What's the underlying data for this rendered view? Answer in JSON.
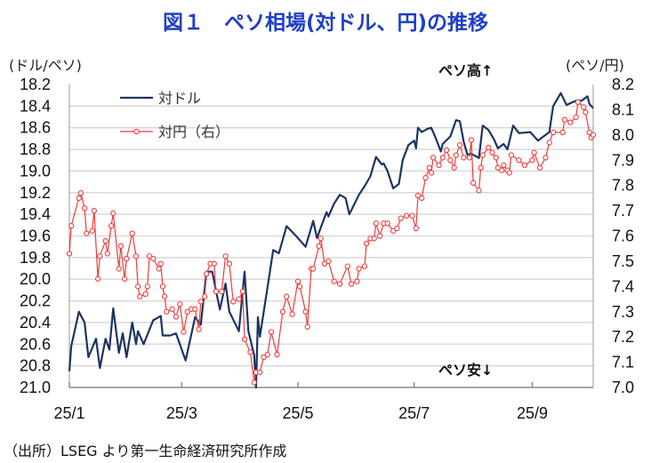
{
  "title": "図１　ペソ相場(対ドル、円)の推移",
  "source": "（出所）LSEG より第一生命経済研究所作成",
  "chart_data": {
    "type": "line",
    "title": "図１　ペソ相場(対ドル、円)の推移",
    "left_unit": "(ドル/ペソ)",
    "right_unit": "(ペソ/円)",
    "annotation_up": "ペソ高↑",
    "annotation_down": "ペソ安↓",
    "x_range": [
      "2025-01-01",
      "2025-10-03"
    ],
    "x_ticks": [
      {
        "date": "2025-01-01",
        "label": "25/1"
      },
      {
        "date": "2025-03-01",
        "label": "25/3"
      },
      {
        "date": "2025-05-01",
        "label": "25/5"
      },
      {
        "date": "2025-07-01",
        "label": "25/7"
      },
      {
        "date": "2025-09-01",
        "label": "25/9"
      }
    ],
    "y_left": {
      "range": [
        18.2,
        21.0
      ],
      "inverted": true,
      "ticks": [
        "18.2",
        "18.4",
        "18.6",
        "18.8",
        "19.0",
        "19.2",
        "19.4",
        "19.6",
        "19.8",
        "20.0",
        "20.2",
        "20.4",
        "20.6",
        "20.8",
        "21.0"
      ]
    },
    "y_right": {
      "range": [
        7.0,
        8.2
      ],
      "ticks": [
        "8.2",
        "8.1",
        "8.0",
        "7.9",
        "7.8",
        "7.7",
        "7.6",
        "7.5",
        "7.4",
        "7.3",
        "7.2",
        "7.1",
        "7.0"
      ]
    },
    "grid": "horizontal",
    "legend": "top-left",
    "series": [
      {
        "name": "対ドル",
        "axis": "left",
        "color": "#1c3461",
        "marker": "none",
        "points": [
          [
            "2025-01-01",
            20.85
          ],
          [
            "2025-01-02",
            20.62
          ],
          [
            "2025-01-06",
            20.3
          ],
          [
            "2025-01-09",
            20.4
          ],
          [
            "2025-01-11",
            20.72
          ],
          [
            "2025-01-15",
            20.55
          ],
          [
            "2025-01-17",
            20.82
          ],
          [
            "2025-01-20",
            20.55
          ],
          [
            "2025-01-22",
            20.65
          ],
          [
            "2025-01-24",
            20.27
          ],
          [
            "2025-01-27",
            20.68
          ],
          [
            "2025-01-29",
            20.5
          ],
          [
            "2025-01-31",
            20.72
          ],
          [
            "2025-02-03",
            20.4
          ],
          [
            "2025-02-05",
            20.6
          ],
          [
            "2025-02-06",
            20.48
          ],
          [
            "2025-02-09",
            20.6
          ],
          [
            "2025-02-14",
            20.38
          ],
          [
            "2025-02-18",
            20.34
          ],
          [
            "2025-02-19",
            20.52
          ],
          [
            "2025-02-23",
            20.52
          ],
          [
            "2025-02-26",
            20.5
          ],
          [
            "2025-03-03",
            20.75
          ],
          [
            "2025-03-08",
            20.35
          ],
          [
            "2025-03-11",
            20.42
          ],
          [
            "2025-03-14",
            19.93
          ],
          [
            "2025-03-17",
            19.93
          ],
          [
            "2025-03-21",
            20.28
          ],
          [
            "2025-03-24",
            20.04
          ],
          [
            "2025-03-26",
            20.3
          ],
          [
            "2025-03-31",
            20.48
          ],
          [
            "2025-04-03",
            19.93
          ],
          [
            "2025-04-05",
            20.48
          ],
          [
            "2025-04-08",
            20.7
          ],
          [
            "2025-04-09",
            21.0
          ],
          [
            "2025-04-10",
            20.35
          ],
          [
            "2025-04-11",
            20.53
          ],
          [
            "2025-04-15",
            20.08
          ],
          [
            "2025-04-18",
            19.73
          ],
          [
            "2025-04-21",
            19.76
          ],
          [
            "2025-04-25",
            19.51
          ],
          [
            "2025-04-30",
            19.6
          ],
          [
            "2025-05-05",
            19.7
          ],
          [
            "2025-05-09",
            19.46
          ],
          [
            "2025-05-11",
            19.62
          ],
          [
            "2025-05-16",
            19.38
          ],
          [
            "2025-05-17",
            19.42
          ],
          [
            "2025-05-20",
            19.3
          ],
          [
            "2025-05-23",
            19.22
          ],
          [
            "2025-05-26",
            19.25
          ],
          [
            "2025-05-28",
            19.4
          ],
          [
            "2025-06-02",
            19.22
          ],
          [
            "2025-06-05",
            19.14
          ],
          [
            "2025-06-08",
            19.05
          ],
          [
            "2025-06-11",
            18.87
          ],
          [
            "2025-06-14",
            18.94
          ],
          [
            "2025-06-15",
            18.93
          ],
          [
            "2025-06-17",
            19.0
          ],
          [
            "2025-06-20",
            19.16
          ],
          [
            "2025-06-23",
            19.12
          ],
          [
            "2025-06-25",
            18.9
          ],
          [
            "2025-06-28",
            18.76
          ],
          [
            "2025-07-01",
            18.72
          ],
          [
            "2025-07-02",
            18.79
          ],
          [
            "2025-07-03",
            18.6
          ],
          [
            "2025-07-05",
            18.64
          ],
          [
            "2025-07-08",
            18.61
          ],
          [
            "2025-07-10",
            18.6
          ],
          [
            "2025-07-12",
            18.68
          ],
          [
            "2025-07-15",
            18.82
          ],
          [
            "2025-07-16",
            18.75
          ],
          [
            "2025-07-20",
            18.68
          ],
          [
            "2025-07-23",
            18.53
          ],
          [
            "2025-07-25",
            18.54
          ],
          [
            "2025-07-27",
            18.73
          ],
          [
            "2025-07-29",
            18.85
          ],
          [
            "2025-07-31",
            18.84
          ],
          [
            "2025-08-04",
            18.88
          ],
          [
            "2025-08-06",
            18.58
          ],
          [
            "2025-08-09",
            18.62
          ],
          [
            "2025-08-12",
            18.71
          ],
          [
            "2025-08-14",
            18.79
          ],
          [
            "2025-08-17",
            18.75
          ],
          [
            "2025-08-19",
            18.8
          ],
          [
            "2025-08-22",
            18.58
          ],
          [
            "2025-08-25",
            18.65
          ],
          [
            "2025-08-31",
            18.64
          ],
          [
            "2025-09-04",
            18.72
          ],
          [
            "2025-09-10",
            18.64
          ],
          [
            "2025-09-12",
            18.4
          ],
          [
            "2025-09-16",
            18.28
          ],
          [
            "2025-09-19",
            18.39
          ],
          [
            "2025-09-24",
            18.35
          ],
          [
            "2025-09-27",
            18.35
          ],
          [
            "2025-09-30",
            18.31
          ],
          [
            "2025-10-01",
            18.38
          ],
          [
            "2025-10-03",
            18.42
          ]
        ]
      },
      {
        "name": "対円（右）",
        "axis": "right",
        "color": "#ee3b3b",
        "marker": "circle",
        "points": [
          [
            "2025-01-01",
            7.53
          ],
          [
            "2025-01-02",
            7.64
          ],
          [
            "2025-01-06",
            7.75
          ],
          [
            "2025-01-07",
            7.77
          ],
          [
            "2025-01-09",
            7.71
          ],
          [
            "2025-01-10",
            7.61
          ],
          [
            "2025-01-13",
            7.62
          ],
          [
            "2025-01-14",
            7.7
          ],
          [
            "2025-01-16",
            7.43
          ],
          [
            "2025-01-17",
            7.52
          ],
          [
            "2025-01-20",
            7.58
          ],
          [
            "2025-01-21",
            7.53
          ],
          [
            "2025-01-23",
            7.64
          ],
          [
            "2025-01-24",
            7.69
          ],
          [
            "2025-01-27",
            7.47
          ],
          [
            "2025-01-28",
            7.56
          ],
          [
            "2025-01-30",
            7.43
          ],
          [
            "2025-01-31",
            7.51
          ],
          [
            "2025-02-03",
            7.61
          ],
          [
            "2025-02-05",
            7.52
          ],
          [
            "2025-02-06",
            7.4
          ],
          [
            "2025-02-07",
            7.36
          ],
          [
            "2025-02-10",
            7.37
          ],
          [
            "2025-02-11",
            7.4
          ],
          [
            "2025-02-12",
            7.52
          ],
          [
            "2025-02-14",
            7.51
          ],
          [
            "2025-02-17",
            7.47
          ],
          [
            "2025-02-18",
            7.49
          ],
          [
            "2025-02-19",
            7.4
          ],
          [
            "2025-02-20",
            7.36
          ],
          [
            "2025-02-21",
            7.3
          ],
          [
            "2025-02-24",
            7.31
          ],
          [
            "2025-02-26",
            7.28
          ],
          [
            "2025-02-28",
            7.33
          ],
          [
            "2025-03-02",
            7.22
          ],
          [
            "2025-03-04",
            7.3
          ],
          [
            "2025-03-06",
            7.31
          ],
          [
            "2025-03-08",
            7.31
          ],
          [
            "2025-03-10",
            7.23
          ],
          [
            "2025-03-11",
            7.34
          ],
          [
            "2025-03-13",
            7.36
          ],
          [
            "2025-03-14",
            7.45
          ],
          [
            "2025-03-16",
            7.49
          ],
          [
            "2025-03-18",
            7.49
          ],
          [
            "2025-03-19",
            7.38
          ],
          [
            "2025-03-22",
            7.38
          ],
          [
            "2025-03-24",
            7.52
          ],
          [
            "2025-03-26",
            7.49
          ],
          [
            "2025-03-28",
            7.34
          ],
          [
            "2025-03-31",
            7.35
          ],
          [
            "2025-04-02",
            7.38
          ],
          [
            "2025-04-03",
            7.19
          ],
          [
            "2025-04-06",
            7.14
          ],
          [
            "2025-04-08",
            7.02
          ],
          [
            "2025-04-09",
            7.06
          ],
          [
            "2025-04-11",
            7.06
          ],
          [
            "2025-04-13",
            7.12
          ],
          [
            "2025-04-15",
            7.13
          ],
          [
            "2025-04-17",
            7.22
          ],
          [
            "2025-04-20",
            7.13
          ],
          [
            "2025-04-23",
            7.3
          ],
          [
            "2025-04-25",
            7.36
          ],
          [
            "2025-04-28",
            7.29
          ],
          [
            "2025-05-01",
            7.42
          ],
          [
            "2025-05-02",
            7.4
          ],
          [
            "2025-05-05",
            7.3
          ],
          [
            "2025-05-06",
            7.24
          ],
          [
            "2025-05-08",
            7.47
          ],
          [
            "2025-05-09",
            7.47
          ],
          [
            "2025-05-12",
            7.56
          ],
          [
            "2025-05-13",
            7.59
          ],
          [
            "2025-05-15",
            7.49
          ],
          [
            "2025-05-17",
            7.5
          ],
          [
            "2025-05-20",
            7.42
          ],
          [
            "2025-05-23",
            7.41
          ],
          [
            "2025-05-27",
            7.48
          ],
          [
            "2025-05-29",
            7.41
          ],
          [
            "2025-06-01",
            7.42
          ],
          [
            "2025-06-02",
            7.47
          ],
          [
            "2025-06-05",
            7.48
          ],
          [
            "2025-06-06",
            7.57
          ],
          [
            "2025-06-08",
            7.59
          ],
          [
            "2025-06-10",
            7.59
          ],
          [
            "2025-06-11",
            7.65
          ],
          [
            "2025-06-13",
            7.6
          ],
          [
            "2025-06-15",
            7.65
          ],
          [
            "2025-06-17",
            7.65
          ],
          [
            "2025-06-20",
            7.62
          ],
          [
            "2025-06-22",
            7.63
          ],
          [
            "2025-06-24",
            7.67
          ],
          [
            "2025-06-27",
            7.68
          ],
          [
            "2025-06-30",
            7.68
          ],
          [
            "2025-07-02",
            7.63
          ],
          [
            "2025-07-03",
            7.76
          ],
          [
            "2025-07-05",
            7.75
          ],
          [
            "2025-07-07",
            7.83
          ],
          [
            "2025-07-09",
            7.87
          ],
          [
            "2025-07-10",
            7.85
          ],
          [
            "2025-07-11",
            7.91
          ],
          [
            "2025-07-14",
            7.88
          ],
          [
            "2025-07-16",
            7.91
          ],
          [
            "2025-07-18",
            7.94
          ],
          [
            "2025-07-20",
            7.9
          ],
          [
            "2025-07-22",
            7.87
          ],
          [
            "2025-07-23",
            7.92
          ],
          [
            "2025-07-25",
            7.96
          ],
          [
            "2025-07-27",
            7.91
          ],
          [
            "2025-07-30",
            7.91
          ],
          [
            "2025-07-31",
            7.98
          ],
          [
            "2025-08-01",
            7.81
          ],
          [
            "2025-08-04",
            7.78
          ],
          [
            "2025-08-05",
            7.87
          ],
          [
            "2025-08-06",
            7.92
          ],
          [
            "2025-08-09",
            7.95
          ],
          [
            "2025-08-11",
            7.93
          ],
          [
            "2025-08-13",
            7.91
          ],
          [
            "2025-08-14",
            7.87
          ],
          [
            "2025-08-16",
            7.86
          ],
          [
            "2025-08-17",
            7.88
          ],
          [
            "2025-08-19",
            7.86
          ],
          [
            "2025-08-20",
            7.85
          ],
          [
            "2025-08-21",
            7.92
          ],
          [
            "2025-08-25",
            7.9
          ],
          [
            "2025-08-28",
            7.88
          ],
          [
            "2025-09-01",
            7.9
          ],
          [
            "2025-09-02",
            7.93
          ],
          [
            "2025-09-05",
            7.87
          ],
          [
            "2025-09-08",
            7.91
          ],
          [
            "2025-09-10",
            7.97
          ],
          [
            "2025-09-12",
            8.01
          ],
          [
            "2025-09-17",
            8.01
          ],
          [
            "2025-09-18",
            8.06
          ],
          [
            "2025-09-21",
            8.05
          ],
          [
            "2025-09-24",
            8.07
          ],
          [
            "2025-09-25",
            8.13
          ],
          [
            "2025-09-28",
            8.11
          ],
          [
            "2025-09-29",
            8.09
          ],
          [
            "2025-10-01",
            8.01
          ],
          [
            "2025-10-02",
            7.99
          ],
          [
            "2025-10-03",
            8.0
          ]
        ]
      }
    ]
  }
}
